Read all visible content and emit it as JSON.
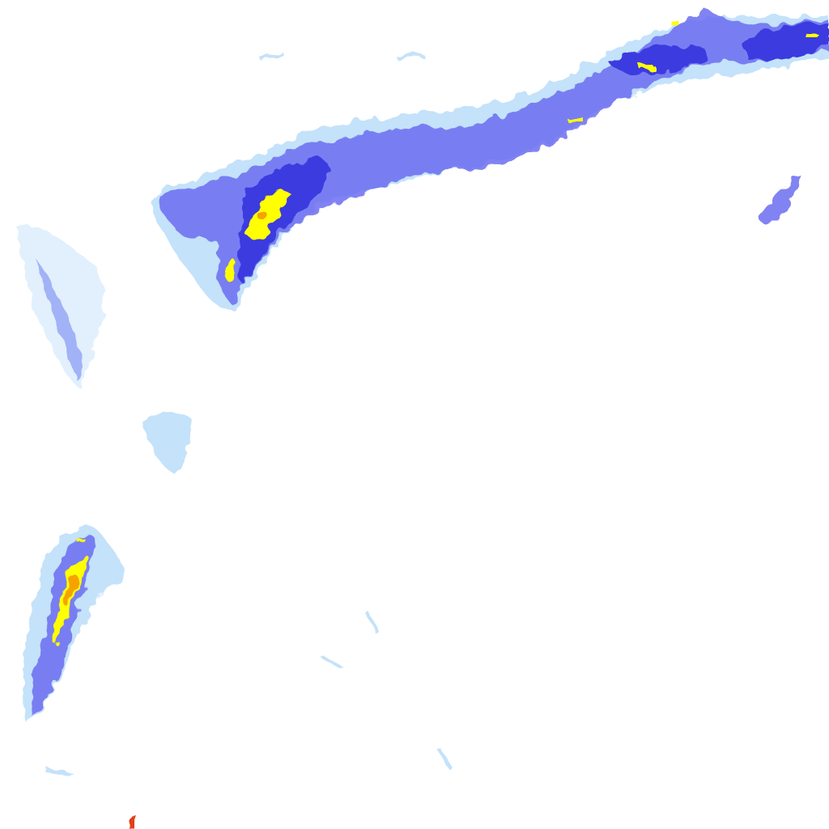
{
  "map": {
    "kind": "precipitation-radar-tile",
    "colors": {
      "background": "#ffffff",
      "light": "#c4e2fa",
      "light_medium": "#9fc4f6",
      "medium": "#6b6cf0",
      "heavy": "#3a3ae0",
      "intense": "#ffff00",
      "extreme": "#f5a300",
      "peak": "#e0401a"
    }
  }
}
